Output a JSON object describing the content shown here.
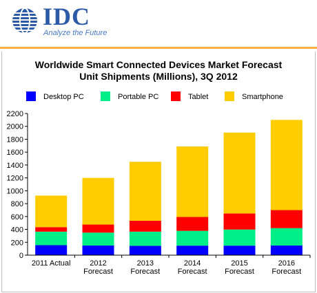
{
  "brand": {
    "logo_text": "IDC",
    "tagline": "Analyze the Future",
    "accent_color": "#f7b03c",
    "logo_color": "#2d5aa6"
  },
  "chart_data": {
    "type": "bar",
    "stacked": true,
    "title_line1": "Worldwide Smart Connected Devices Market Forecast",
    "title_line2": "Unit Shipments (Millions), 3Q 2012",
    "categories": [
      [
        "2011 Actual"
      ],
      [
        "2012",
        "Forecast"
      ],
      [
        "2013",
        "Forecast"
      ],
      [
        "2014",
        "Forecast"
      ],
      [
        "2015",
        "Forecast"
      ],
      [
        "2016",
        "Forecast"
      ]
    ],
    "series": [
      {
        "name": "Desktop PC",
        "color": "#0000ff",
        "values": [
          155,
          150,
          145,
          148,
          148,
          150
        ]
      },
      {
        "name": "Portable PC",
        "color": "#00ee88",
        "values": [
          210,
          200,
          220,
          230,
          250,
          270
        ]
      },
      {
        "name": "Tablet",
        "color": "#ff0000",
        "values": [
          70,
          125,
          170,
          215,
          250,
          280
        ]
      },
      {
        "name": "Smartphone",
        "color": "#ffcc00",
        "values": [
          490,
          725,
          915,
          1095,
          1255,
          1400
        ]
      }
    ],
    "ylim": [
      0,
      2200
    ],
    "yticks": [
      0,
      200,
      400,
      600,
      800,
      1000,
      1200,
      1400,
      1600,
      1800,
      2000,
      2200
    ],
    "grid": false,
    "legend_position": "top"
  }
}
